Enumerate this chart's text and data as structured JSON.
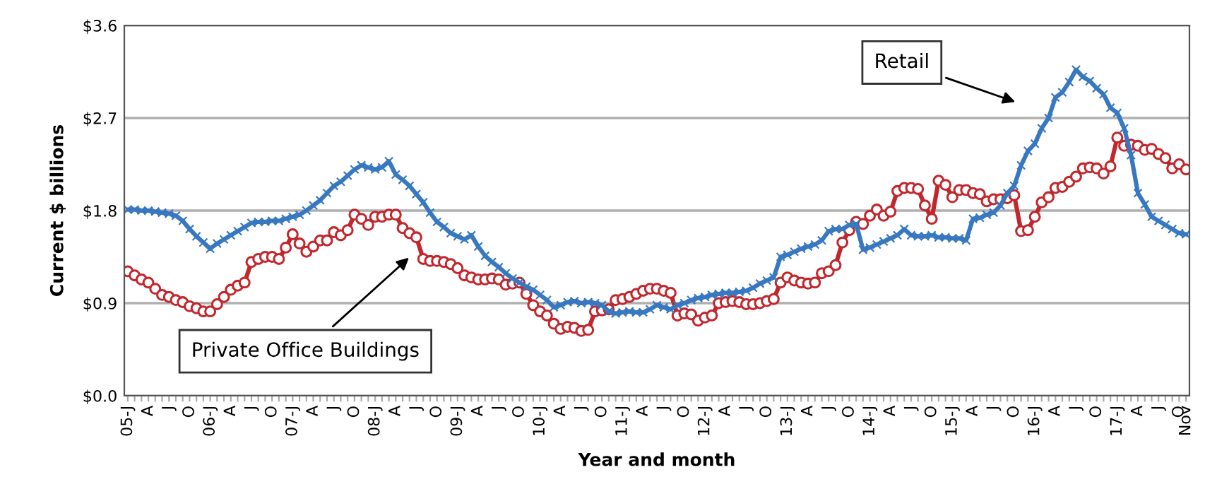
{
  "chart_data": {
    "type": "line",
    "xlabel": "Year and month",
    "ylabel": "Current $ billions",
    "categories": [
      "05-J",
      null,
      null,
      "A",
      null,
      null,
      "J",
      null,
      null,
      "O",
      null,
      null,
      "06-J",
      null,
      null,
      "A",
      null,
      null,
      "J",
      null,
      null,
      "O",
      null,
      null,
      "07-J",
      null,
      null,
      "A",
      null,
      null,
      "J",
      null,
      null,
      "O",
      null,
      null,
      "08-J",
      null,
      null,
      "A",
      null,
      null,
      "J",
      null,
      null,
      "O",
      null,
      null,
      "09-J",
      null,
      null,
      "A",
      null,
      null,
      "J",
      null,
      null,
      "O",
      null,
      null,
      "10-J",
      null,
      null,
      "A",
      null,
      null,
      "J",
      null,
      null,
      "O",
      null,
      null,
      "11-J",
      null,
      null,
      "A",
      null,
      null,
      "J",
      null,
      null,
      "O",
      null,
      null,
      "12-J",
      null,
      null,
      "A",
      null,
      null,
      "J",
      null,
      null,
      "O",
      null,
      null,
      "13-J",
      null,
      null,
      "A",
      null,
      null,
      "J",
      null,
      null,
      "O",
      null,
      null,
      "14-J",
      null,
      null,
      "A",
      null,
      null,
      "J",
      null,
      null,
      "O",
      null,
      null,
      "15-J",
      null,
      null,
      "A",
      null,
      null,
      "J",
      null,
      null,
      "O",
      null,
      null,
      "16-J",
      null,
      null,
      "A",
      null,
      null,
      "J",
      null,
      null,
      "O",
      null,
      null,
      "17-J",
      null,
      null,
      "A",
      null,
      null,
      "J",
      null,
      null,
      "O",
      "Nov"
    ],
    "series": [
      {
        "color": "#c0282e",
        "marker": "circle",
        "values": [
          1.21,
          1.17,
          1.13,
          1.1,
          1.04,
          0.98,
          0.96,
          0.93,
          0.91,
          0.87,
          0.85,
          0.82,
          0.82,
          0.89,
          0.96,
          1.03,
          1.07,
          1.1,
          1.3,
          1.33,
          1.35,
          1.35,
          1.33,
          1.44,
          1.57,
          1.48,
          1.4,
          1.45,
          1.51,
          1.51,
          1.59,
          1.56,
          1.61,
          1.76,
          1.72,
          1.66,
          1.74,
          1.74,
          1.76,
          1.76,
          1.63,
          1.58,
          1.54,
          1.33,
          1.31,
          1.31,
          1.3,
          1.28,
          1.24,
          1.17,
          1.15,
          1.13,
          1.13,
          1.14,
          1.13,
          1.08,
          1.09,
          1.1,
          0.99,
          0.88,
          0.82,
          0.78,
          0.7,
          0.65,
          0.67,
          0.66,
          0.63,
          0.64,
          0.82,
          0.83,
          0.84,
          0.93,
          0.94,
          0.96,
          0.99,
          1.02,
          1.04,
          1.04,
          1.02,
          1.0,
          0.78,
          0.8,
          0.79,
          0.73,
          0.76,
          0.78,
          0.9,
          0.91,
          0.92,
          0.91,
          0.89,
          0.89,
          0.9,
          0.92,
          0.94,
          1.1,
          1.15,
          1.12,
          1.1,
          1.09,
          1.1,
          1.19,
          1.21,
          1.27,
          1.49,
          1.61,
          1.69,
          1.67,
          1.75,
          1.81,
          1.75,
          1.79,
          1.99,
          2.02,
          2.02,
          2.01,
          1.85,
          1.72,
          2.09,
          2.05,
          1.93,
          2.0,
          2.0,
          1.97,
          1.96,
          1.89,
          1.91,
          1.91,
          1.92,
          1.95,
          1.6,
          1.61,
          1.74,
          1.88,
          1.93,
          2.02,
          2.03,
          2.08,
          2.13,
          2.21,
          2.22,
          2.21,
          2.16,
          2.23,
          2.51,
          2.43,
          2.44,
          2.43,
          2.39,
          2.4,
          2.35,
          2.31,
          2.21,
          2.25,
          2.2
        ]
      },
      {
        "color": "#3878c0",
        "marker": "cross",
        "values": [
          1.81,
          1.81,
          1.8,
          1.8,
          1.79,
          1.78,
          1.77,
          1.75,
          1.7,
          1.62,
          1.55,
          1.49,
          1.43,
          1.48,
          1.52,
          1.56,
          1.6,
          1.64,
          1.68,
          1.69,
          1.69,
          1.7,
          1.7,
          1.72,
          1.74,
          1.76,
          1.8,
          1.85,
          1.9,
          1.97,
          2.04,
          2.08,
          2.14,
          2.2,
          2.24,
          2.22,
          2.2,
          2.22,
          2.28,
          2.15,
          2.1,
          2.04,
          1.96,
          1.88,
          1.78,
          1.69,
          1.64,
          1.58,
          1.55,
          1.52,
          1.56,
          1.45,
          1.36,
          1.3,
          1.25,
          1.19,
          1.14,
          1.1,
          1.06,
          1.03,
          0.98,
          0.93,
          0.86,
          0.88,
          0.91,
          0.92,
          0.9,
          0.91,
          0.9,
          0.88,
          0.82,
          0.8,
          0.81,
          0.82,
          0.81,
          0.81,
          0.84,
          0.88,
          0.86,
          0.84,
          0.88,
          0.9,
          0.93,
          0.95,
          0.96,
          0.98,
          0.99,
          1.0,
          1.0,
          1.01,
          1.02,
          1.05,
          1.09,
          1.12,
          1.15,
          1.35,
          1.37,
          1.4,
          1.43,
          1.45,
          1.47,
          1.51,
          1.6,
          1.62,
          1.62,
          1.66,
          1.67,
          1.42,
          1.44,
          1.47,
          1.5,
          1.53,
          1.56,
          1.62,
          1.56,
          1.55,
          1.55,
          1.56,
          1.54,
          1.54,
          1.53,
          1.53,
          1.51,
          1.72,
          1.73,
          1.76,
          1.78,
          1.85,
          1.97,
          2.04,
          2.24,
          2.38,
          2.45,
          2.6,
          2.7,
          2.9,
          2.95,
          3.05,
          3.17,
          3.1,
          3.06,
          2.99,
          2.93,
          2.8,
          2.75,
          2.6,
          2.34,
          1.97,
          1.86,
          1.74,
          1.7,
          1.66,
          1.62,
          1.58,
          1.57
        ]
      }
    ],
    "ylim": [
      0,
      3.6
    ],
    "yticks": [
      {
        "value": 0,
        "label": "$0.0"
      },
      {
        "value": 0.9,
        "label": "$0.9"
      },
      {
        "value": 1.8,
        "label": "$1.8"
      },
      {
        "value": 2.7,
        "label": "$2.7"
      },
      {
        "value": 3.6,
        "label": "$3.6"
      }
    ],
    "grid": "y",
    "legend": false,
    "annotations": [
      "Retail",
      "Private Office Buildings"
    ]
  }
}
